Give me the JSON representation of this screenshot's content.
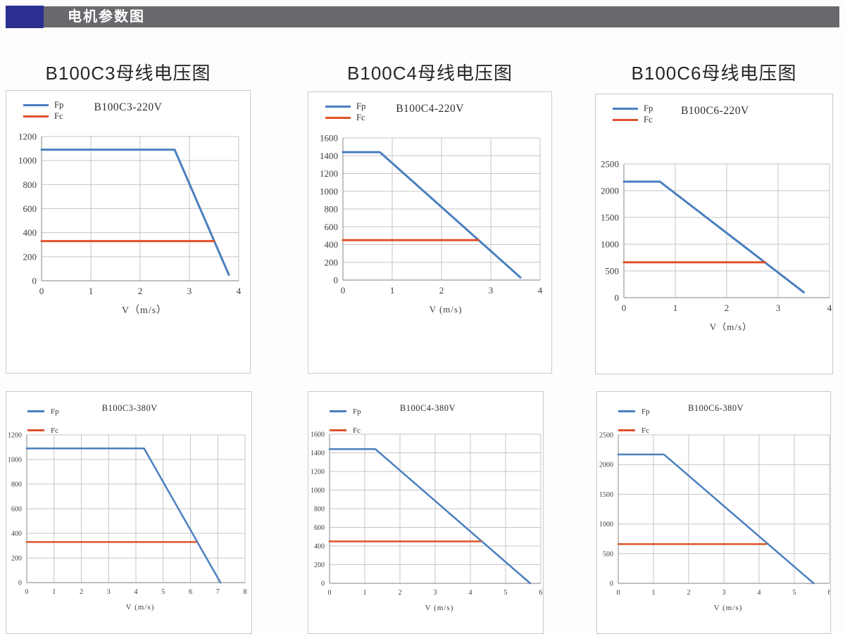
{
  "header": {
    "title": "电机参数图"
  },
  "section_titles": [
    "B100C3母线电压图",
    "B100C4母线电压图",
    "B100C6母线电压图"
  ],
  "colors": {
    "accent_blue": "#2a2f90",
    "header_gray": "#68686d",
    "fp_blue": "#4a7fbf",
    "fc_orange": "#e0522a",
    "grid": "#c6c6c6",
    "axis": "#9b9b9b"
  },
  "chart_data": [
    {
      "type": "line",
      "title": "B100C3-220V",
      "xlabel": "V（m/s）",
      "x_range": [
        0,
        4
      ],
      "y_range": [
        0,
        1200
      ],
      "xticks": [
        0,
        1,
        2,
        3,
        4
      ],
      "yticks": [
        0,
        200,
        400,
        600,
        800,
        1000,
        1200
      ],
      "grid": true,
      "legend_position": "top-left",
      "series": [
        {
          "name": "Fp",
          "color": "#4a7fbf",
          "points": [
            [
              0,
              1090
            ],
            [
              2.7,
              1090
            ],
            [
              3.8,
              50
            ]
          ]
        },
        {
          "name": "Fc",
          "color": "#e0522a",
          "points": [
            [
              0,
              330
            ],
            [
              3.5,
              330
            ]
          ]
        }
      ]
    },
    {
      "type": "line",
      "title": "B100C4-220V",
      "xlabel": "V (m/s)",
      "x_range": [
        0,
        4
      ],
      "y_range": [
        0,
        1600
      ],
      "xticks": [
        0,
        1,
        2,
        3,
        4
      ],
      "yticks": [
        0,
        200,
        400,
        600,
        800,
        1000,
        1200,
        1400,
        1600
      ],
      "grid": true,
      "legend_position": "top-left",
      "series": [
        {
          "name": "Fp",
          "color": "#4a7fbf",
          "points": [
            [
              0,
              1440
            ],
            [
              0.75,
              1440
            ],
            [
              3.6,
              30
            ]
          ]
        },
        {
          "name": "Fc",
          "color": "#e0522a",
          "points": [
            [
              0,
              450
            ],
            [
              2.75,
              450
            ]
          ]
        }
      ]
    },
    {
      "type": "line",
      "title": "B100C6-220V",
      "xlabel": "V（m/s）",
      "x_range": [
        0,
        4
      ],
      "y_range": [
        0,
        2500
      ],
      "xticks": [
        0,
        1,
        2,
        3,
        4
      ],
      "yticks": [
        0,
        500,
        1000,
        1500,
        2000,
        2500
      ],
      "grid": true,
      "legend_position": "top-left",
      "series": [
        {
          "name": "Fp",
          "color": "#4a7fbf",
          "points": [
            [
              0,
              2170
            ],
            [
              0.7,
              2170
            ],
            [
              3.5,
              100
            ]
          ]
        },
        {
          "name": "Fc",
          "color": "#e0522a",
          "points": [
            [
              0,
              660
            ],
            [
              2.75,
              660
            ]
          ]
        }
      ]
    },
    {
      "type": "line",
      "title": "B100C3-380V",
      "xlabel": "V (m/s)",
      "x_range": [
        0,
        8
      ],
      "y_range": [
        0,
        1200
      ],
      "xticks": [
        0,
        1,
        2,
        3,
        4,
        5,
        6,
        7,
        8
      ],
      "yticks": [
        0,
        200,
        400,
        600,
        800,
        1000,
        1200
      ],
      "grid": true,
      "legend_position": "top-left",
      "series": [
        {
          "name": "Fp",
          "color": "#4a7fbf",
          "points": [
            [
              0,
              1090
            ],
            [
              4.3,
              1090
            ],
            [
              7.1,
              0
            ]
          ]
        },
        {
          "name": "Fc",
          "color": "#e0522a",
          "points": [
            [
              0,
              330
            ],
            [
              6.2,
              330
            ]
          ]
        }
      ]
    },
    {
      "type": "line",
      "title": "B100C4-380V",
      "xlabel": "V (m/s)",
      "x_range": [
        0,
        6
      ],
      "y_range": [
        0,
        1600
      ],
      "xticks": [
        0,
        1,
        2,
        3,
        4,
        5,
        6
      ],
      "yticks": [
        0,
        200,
        400,
        600,
        800,
        1000,
        1200,
        1400,
        1600
      ],
      "grid": true,
      "legend_position": "top-left",
      "series": [
        {
          "name": "Fp",
          "color": "#4a7fbf",
          "points": [
            [
              0,
              1440
            ],
            [
              1.3,
              1440
            ],
            [
              5.7,
              0
            ]
          ]
        },
        {
          "name": "Fc",
          "color": "#e0522a",
          "points": [
            [
              0,
              450
            ],
            [
              4.3,
              450
            ]
          ]
        }
      ]
    },
    {
      "type": "line",
      "title": "B100C6-380V",
      "xlabel": "V (m/s)",
      "x_range": [
        0,
        6
      ],
      "y_range": [
        0,
        2500
      ],
      "xticks": [
        0,
        1,
        2,
        3,
        4,
        5,
        6
      ],
      "yticks": [
        0,
        500,
        1000,
        1500,
        2000,
        2500
      ],
      "grid": true,
      "legend_position": "top-left",
      "series": [
        {
          "name": "Fp",
          "color": "#4a7fbf",
          "points": [
            [
              0,
              2170
            ],
            [
              1.3,
              2170
            ],
            [
              5.55,
              0
            ]
          ]
        },
        {
          "name": "Fc",
          "color": "#e0522a",
          "points": [
            [
              0,
              660
            ],
            [
              4.2,
              660
            ]
          ]
        }
      ]
    }
  ]
}
